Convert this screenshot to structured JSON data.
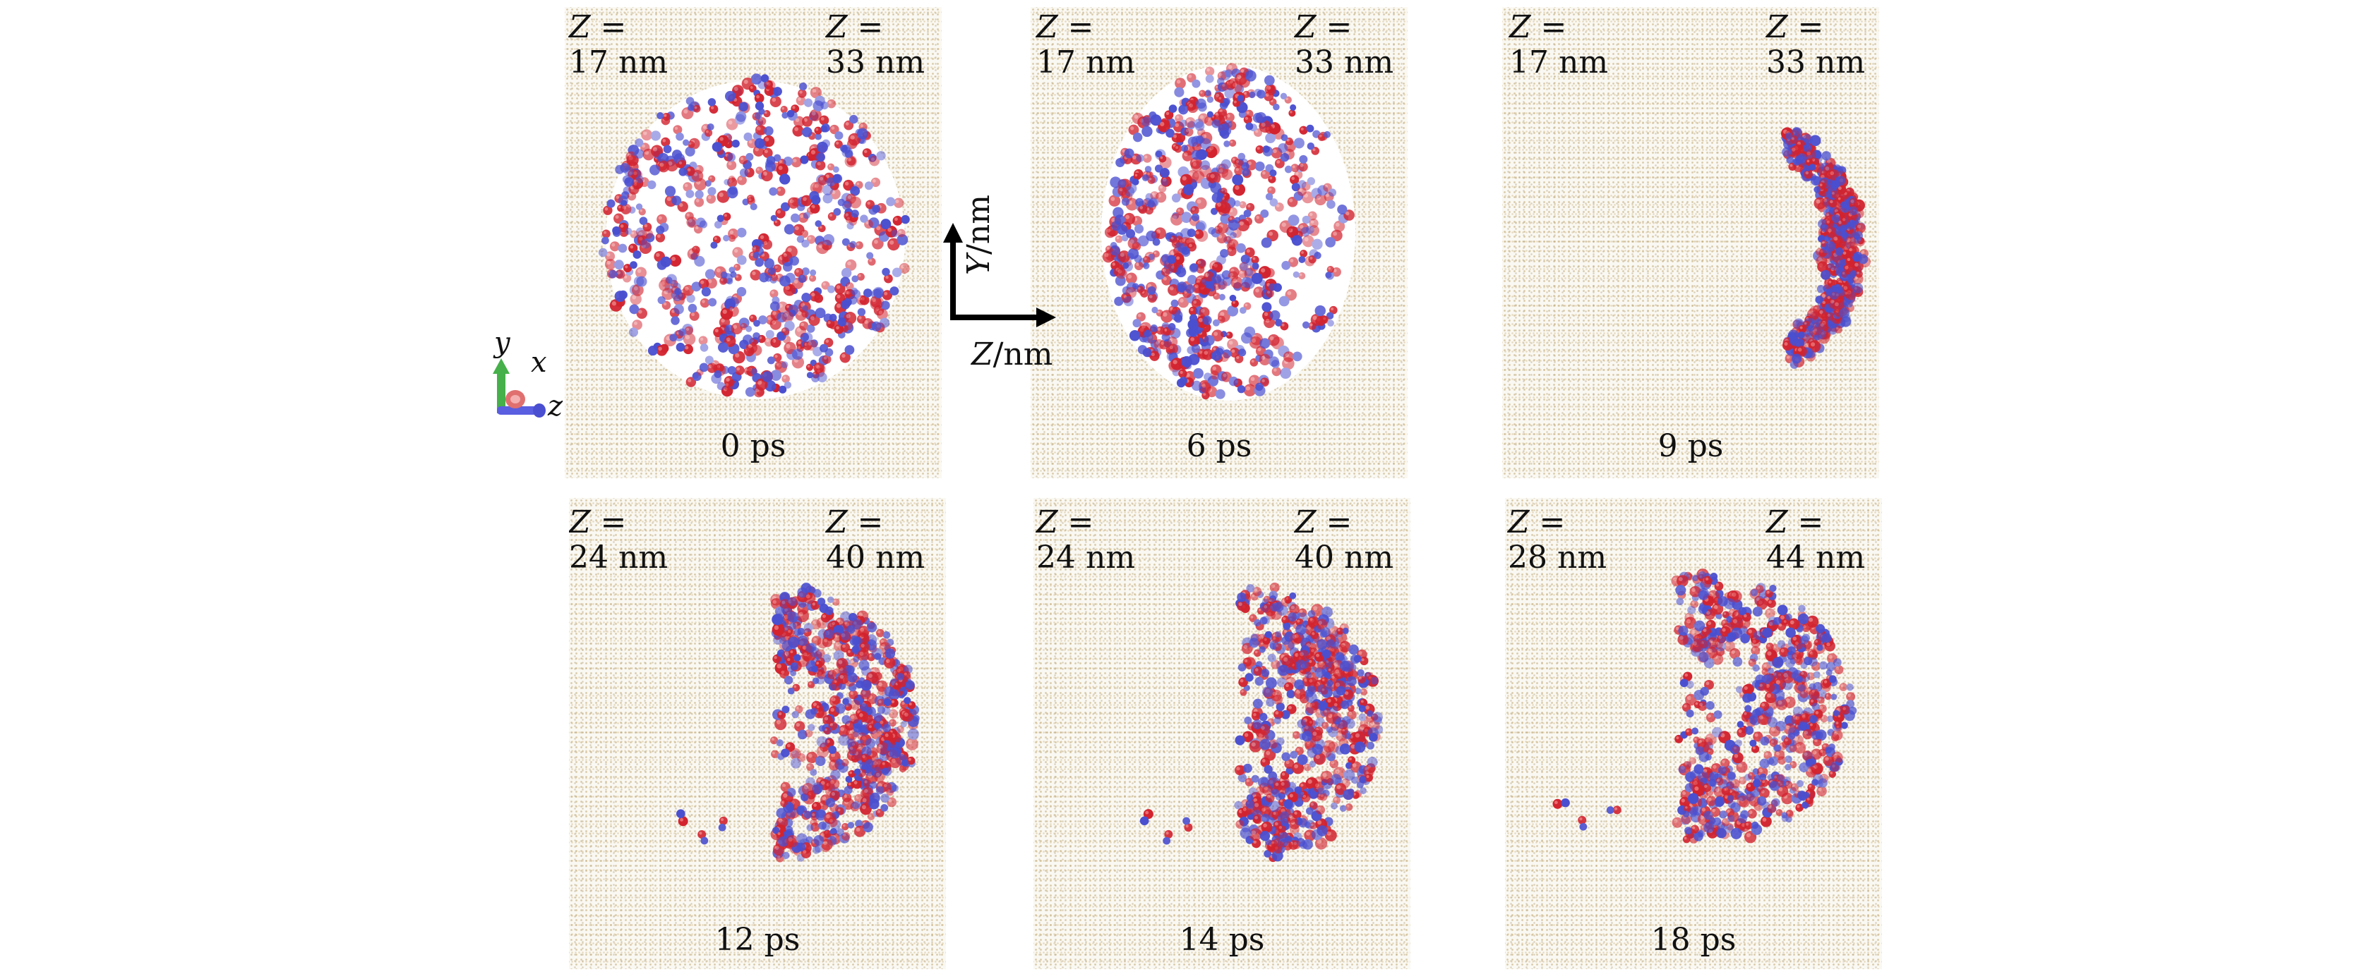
{
  "panels": [
    {
      "id": "p1",
      "z_left_sym": "Z =",
      "z_left_val": "17 nm",
      "z_right_sym": "Z =",
      "z_right_val": "33 nm",
      "time": "0 ps",
      "shape": "sphere"
    },
    {
      "id": "p2",
      "z_left_sym": "Z =",
      "z_left_val": "17 nm",
      "z_right_sym": "Z =",
      "z_right_val": "33 nm",
      "time": "6 ps",
      "shape": "sphere-compressed"
    },
    {
      "id": "p3",
      "z_left_sym": "Z =",
      "z_left_val": "17 nm",
      "z_right_sym": "Z =",
      "z_right_val": "33 nm",
      "time": "9 ps",
      "shape": "cap"
    },
    {
      "id": "p4",
      "z_left_sym": "Z =",
      "z_left_val": "24 nm",
      "z_right_sym": "Z =",
      "z_right_val": "40 nm",
      "time": "12 ps",
      "shape": "half"
    },
    {
      "id": "p5",
      "z_left_sym": "Z =",
      "z_left_val": "24 nm",
      "z_right_sym": "Z =",
      "z_right_val": "40 nm",
      "time": "14 ps",
      "shape": "half"
    },
    {
      "id": "p6",
      "z_left_sym": "Z =",
      "z_left_val": "28 nm",
      "z_right_sym": "Z =",
      "z_right_val": "44 nm",
      "time": "18 ps",
      "shape": "half-wide"
    }
  ],
  "axes": {
    "y_sym": "Y",
    "y_unit": "/nm",
    "z_sym": "Z",
    "z_unit": "/nm"
  },
  "triad": {
    "y": "y",
    "x": "x",
    "z": "z"
  },
  "colors": {
    "molecule_red": "#d2232f",
    "molecule_blue": "#4a4fd0",
    "background_dots": "#c8b48a",
    "triad_green": "#46b04a",
    "triad_blue": "#5a5ee0",
    "triad_red": "#e07070"
  }
}
